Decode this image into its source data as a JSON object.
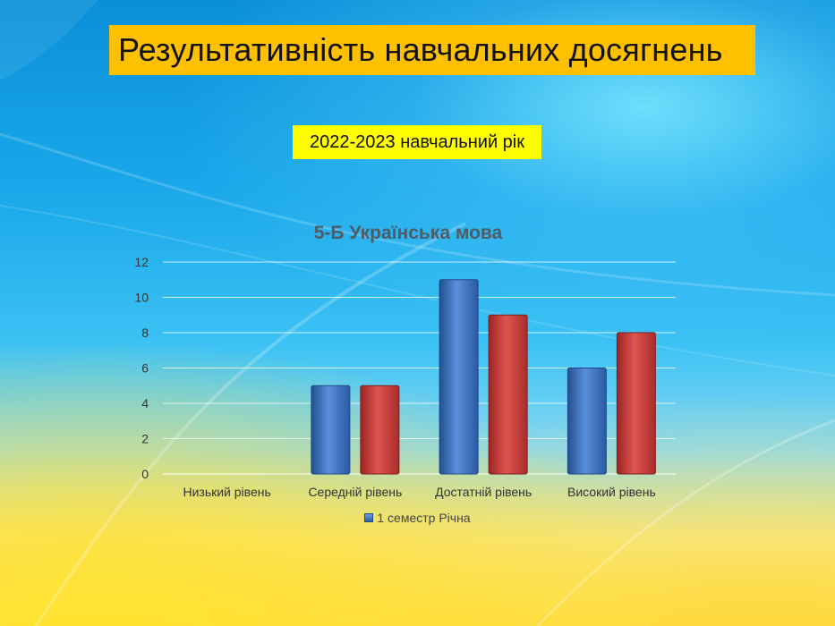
{
  "slide": {
    "title": "Результативність навчальних досягнень",
    "subtitle": "2022-2023 навчальний рік"
  },
  "chart_data": {
    "type": "bar",
    "title": "5-Б Українська мова",
    "categories": [
      "Низький рівень",
      "Середній рівень",
      "Достатній рівень",
      "Високий рівень"
    ],
    "series": [
      {
        "values": [
          0,
          5,
          11,
          6
        ],
        "color": "#3b6fbf"
      },
      {
        "values": [
          0,
          5,
          9,
          8
        ],
        "color": "#c93a37"
      }
    ],
    "ylim": [
      0,
      12
    ],
    "yticks": [
      0,
      2,
      4,
      6,
      8,
      10,
      12
    ],
    "grid": true,
    "legend": {
      "position": "bottom",
      "text": "1 семестр Річна"
    }
  }
}
